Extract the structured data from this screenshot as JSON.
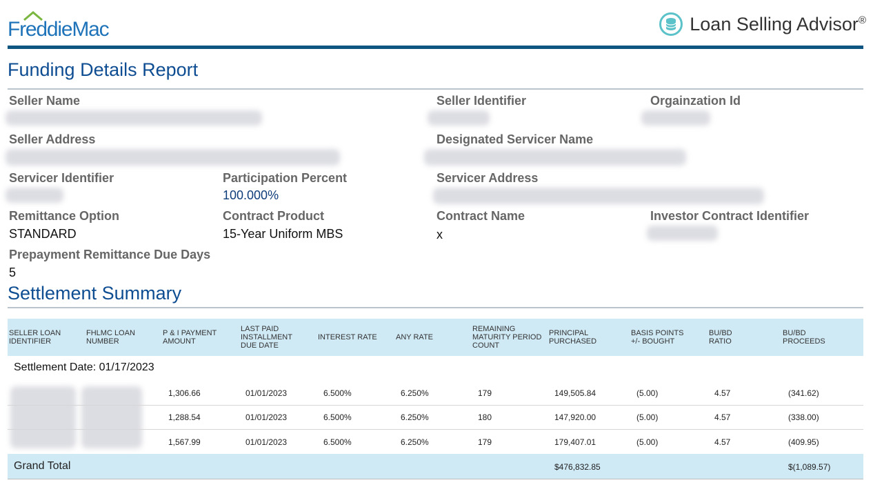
{
  "header": {
    "logo_text": "FreddieMac",
    "product_name": "Loan Selling Advisor",
    "product_mark": "®",
    "product_icon": "database-icon"
  },
  "report": {
    "title": "Funding Details Report",
    "fields": {
      "seller_name": {
        "label": "Seller Name",
        "value": ""
      },
      "seller_identifier": {
        "label": "Seller Identifier",
        "value": ""
      },
      "organization_id": {
        "label": "Orgainzation Id",
        "value": ""
      },
      "seller_address": {
        "label": "Seller Address",
        "value": ""
      },
      "designated_servicer_name": {
        "label": "Designated Servicer Name",
        "value": ""
      },
      "servicer_identifier": {
        "label": "Servicer Identifier",
        "value": ""
      },
      "participation_percent": {
        "label": "Participation Percent",
        "value": "100.000%"
      },
      "servicer_address": {
        "label": "Servicer Address",
        "value": ""
      },
      "remittance_option": {
        "label": "Remittance Option",
        "value": "STANDARD"
      },
      "contract_product": {
        "label": "Contract Product",
        "value": "15-Year Uniform MBS"
      },
      "contract_name": {
        "label": "Contract Name",
        "value": "x"
      },
      "investor_contract_identifier": {
        "label": "Investor Contract Identifier",
        "value": ""
      },
      "prepayment_remittance_due_days": {
        "label": "Prepayment Remittance Due Days",
        "value": "5"
      }
    }
  },
  "settlement": {
    "title": "Settlement Summary",
    "columns": [
      "SELLER LOAN IDENTIFIER",
      "FHLMC LOAN NUMBER",
      "P & I PAYMENT AMOUNT",
      "LAST PAID INSTALLMENT DUE DATE",
      "INTEREST RATE",
      "ANY RATE",
      "REMAINING MATURITY PERIOD COUNT",
      "PRINCIPAL PURCHASED",
      "BASIS POINTS +/- BOUGHT",
      "BU/BD RATIO",
      "BU/BD PROCEEDS"
    ],
    "settlement_date_label": "Settlement Date: 01/17/2023",
    "rows": [
      [
        "",
        "",
        "1,306.66",
        "01/01/2023",
        "6.500%",
        "6.250%",
        "179",
        "149,505.84",
        "(5.00)",
        "4.57",
        "(341.62)"
      ],
      [
        "",
        "",
        "1,288.54",
        "01/01/2023",
        "6.500%",
        "6.250%",
        "180",
        "147,920.00",
        "(5.00)",
        "4.57",
        "(338.00)"
      ],
      [
        "",
        "",
        "1,567.99",
        "01/01/2023",
        "6.500%",
        "6.250%",
        "179",
        "179,407.01",
        "(5.00)",
        "4.57",
        "(409.95)"
      ]
    ],
    "grand_total": {
      "label": "Grand Total",
      "principal_purchased": "$476,832.85",
      "bubd_proceeds": "$(1,089.57)"
    }
  },
  "colors": {
    "brand_blue": "#1e73b9",
    "title_blue": "#0e4d92",
    "header_rule": "#0e5582",
    "table_header_bg": "#cfe9f5",
    "icon_teal": "#5cc2c9"
  }
}
